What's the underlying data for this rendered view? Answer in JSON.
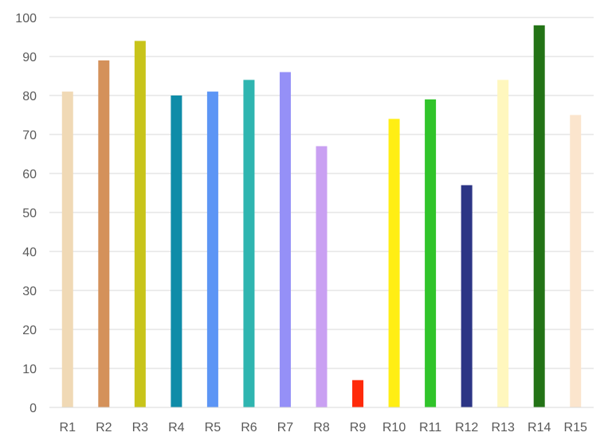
{
  "chart_data": {
    "type": "bar",
    "title": "",
    "xlabel": "",
    "ylabel": "",
    "categories": [
      "R1",
      "R2",
      "R3",
      "R4",
      "R5",
      "R6",
      "R7",
      "R8",
      "R9",
      "R10",
      "R11",
      "R12",
      "R13",
      "R14",
      "R15"
    ],
    "values": [
      81,
      89,
      94,
      80,
      81,
      84,
      86,
      67,
      7,
      74,
      79,
      57,
      84,
      98,
      75
    ],
    "bar_colors": [
      "#f0d9b5",
      "#d4915a",
      "#c8c41a",
      "#0f8ca8",
      "#5c95f5",
      "#2fb5b0",
      "#9590f7",
      "#c9a0f2",
      "#ff2a0a",
      "#ffee14",
      "#30c42a",
      "#2c3585",
      "#fff7be",
      "#237316",
      "#fbe5cd"
    ],
    "ylim": [
      0,
      100
    ],
    "yticks": [
      0,
      10,
      20,
      30,
      40,
      50,
      60,
      70,
      80,
      90,
      100
    ],
    "grid": true,
    "legend": "none"
  },
  "style": {
    "grid_color": "#d9d9d9",
    "tick_label_color": "#595959"
  }
}
